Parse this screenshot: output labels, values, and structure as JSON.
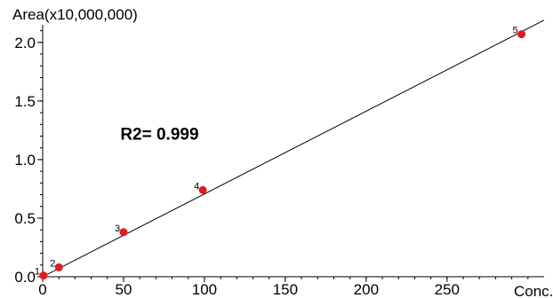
{
  "chart_data": {
    "type": "scatter",
    "title": "",
    "ylabel": "Area(x10,000,000)",
    "xlabel": "Conc.",
    "xlim": [
      0,
      310
    ],
    "ylim": [
      0,
      2.15
    ],
    "x_ticks": [
      0,
      50,
      100,
      150,
      200,
      250
    ],
    "x_tick_labels": [
      "0",
      "50",
      "100",
      "150",
      "200",
      "250"
    ],
    "y_ticks": [
      0.0,
      0.5,
      1.0,
      1.5,
      2.0
    ],
    "y_tick_labels": [
      "0.0",
      "0.5",
      "1.0",
      "1.5",
      "2.0"
    ],
    "grid": false,
    "points": [
      {
        "label": "1",
        "x": 0.5,
        "y": 0.01
      },
      {
        "label": "2",
        "x": 10,
        "y": 0.08
      },
      {
        "label": "3",
        "x": 50,
        "y": 0.38
      },
      {
        "label": "4",
        "x": 99,
        "y": 0.74
      },
      {
        "label": "5",
        "x": 296,
        "y": 2.07
      }
    ],
    "fit_line": {
      "x": [
        0,
        310
      ],
      "y": [
        0.0,
        2.19
      ]
    },
    "annotation": "R2= 0.999",
    "annotation_pos": {
      "x": 48,
      "y": 1.17
    },
    "colors": {
      "point": "#e41a1c",
      "line": "#000000",
      "axis": "#000000"
    }
  }
}
